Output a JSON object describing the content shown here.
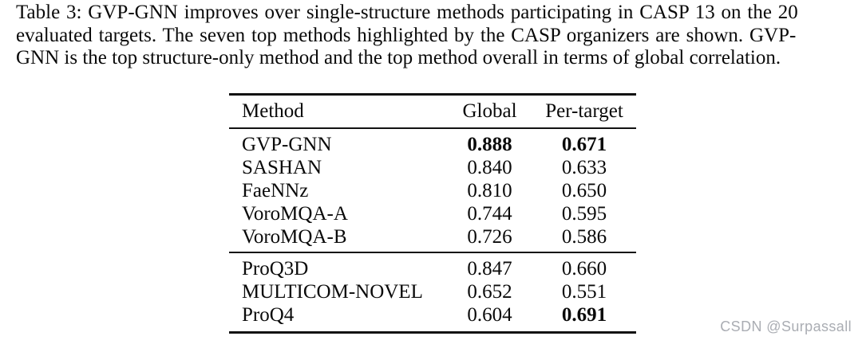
{
  "caption": {
    "lines": [
      "Table 3: GVP-GNN improves over single-structure methods participating in CASP 13 on the 20",
      "evaluated targets.  The seven top methods highlighted by the CASP organizers are shown.  GVP-",
      "GNN is the top structure-only method and the top method overall in terms of global correlation."
    ]
  },
  "table": {
    "headers": {
      "method": "Method",
      "global": "Global",
      "per_target": "Per-target"
    },
    "group1": [
      {
        "method": "GVP-GNN",
        "global": "0.888",
        "per_target": "0.671"
      },
      {
        "method": "SASHAN",
        "global": "0.840",
        "per_target": "0.633"
      },
      {
        "method": "FaeNNz",
        "global": "0.810",
        "per_target": "0.650"
      },
      {
        "method": "VoroMQA-A",
        "global": "0.744",
        "per_target": "0.595"
      },
      {
        "method": "VoroMQA-B",
        "global": "0.726",
        "per_target": "0.586"
      }
    ],
    "group2": [
      {
        "method": "ProQ3D",
        "global": "0.847",
        "per_target": "0.660"
      },
      {
        "method": "MULTICOM-NOVEL",
        "global": "0.652",
        "per_target": "0.551"
      },
      {
        "method": "ProQ4",
        "global": "0.604",
        "per_target": "0.691"
      }
    ]
  },
  "watermark": {
    "text": "CSDN @Surpassall",
    "color": "#aaadb3"
  }
}
